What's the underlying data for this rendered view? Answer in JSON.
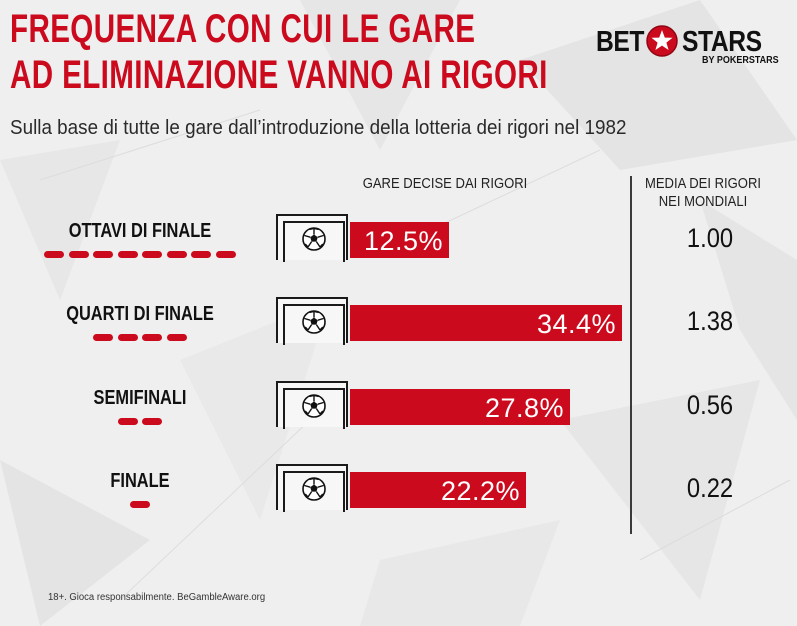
{
  "header": {
    "title_line1": "FREQUENZA CON CUI LE GARE",
    "title_line2": "AD ELIMINAZIONE VANNO AI RIGORI",
    "subtitle": "Sulla base di tutte le gare dall’introduzione della lotteria dei rigori nel 1982"
  },
  "logo": {
    "bet": "BET",
    "stars": "STARS",
    "sub": "BY POKERSTARS"
  },
  "columns": {
    "bars_header": "GARE DECISE DAI RIGORI",
    "avg_header_line1": "MEDIA DEI RIGORI",
    "avg_header_line2": "NEI MONDIALI"
  },
  "footnote": "18+. Gioca responsabilmente. BeGambleAware.org",
  "colors": {
    "accent": "#cc0a1e",
    "text": "#1a1a1a",
    "background": "#efefef"
  },
  "icons": {
    "goal": "goal-net-icon",
    "ball": "football-icon",
    "logo_star": "star-icon"
  },
  "chart_data": {
    "type": "bar",
    "categories": [
      "OTTAVI DI FINALE",
      "QUARTI DI FINALE",
      "SEMIFINALI",
      "FINALE"
    ],
    "dash_counts": [
      8,
      4,
      2,
      1
    ],
    "series": [
      {
        "values": [
          12.5,
          34.4,
          27.8,
          22.2
        ],
        "labels": [
          "12.5%",
          "34.4%",
          "27.8%",
          "22.2%"
        ]
      }
    ],
    "averages": [
      "1.00",
      "1.38",
      "0.56",
      "0.22"
    ],
    "unit": "%",
    "xlim": [
      0,
      34.4
    ]
  }
}
